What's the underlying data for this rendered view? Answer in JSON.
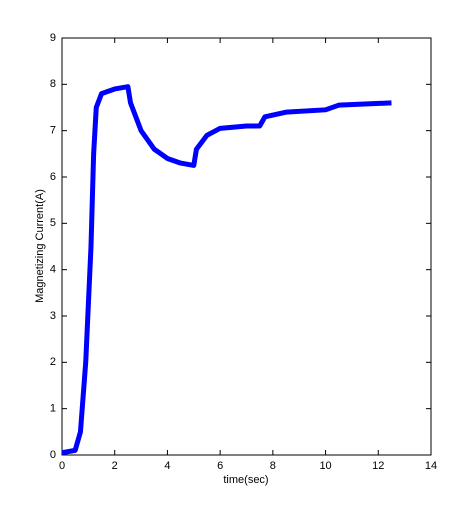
{
  "chart_data": {
    "type": "line",
    "x_label": "time(sec)",
    "y_label": "Magnetizing Current(A)",
    "series": [
      {
        "name": "Magnetizing Current",
        "color": "#0000ff",
        "x": [
          0,
          0.5,
          0.7,
          0.9,
          1.1,
          1.2,
          1.3,
          1.5,
          2.0,
          2.5,
          2.6,
          3.0,
          3.5,
          4.0,
          4.5,
          5.0,
          5.1,
          5.5,
          6.0,
          7.0,
          7.5,
          7.7,
          8.5,
          10.0,
          10.5,
          12.5
        ],
        "values": [
          0.05,
          0.1,
          0.5,
          2,
          4.5,
          6.5,
          7.5,
          7.8,
          7.9,
          7.95,
          7.6,
          7.0,
          6.6,
          6.4,
          6.3,
          6.25,
          6.6,
          6.9,
          7.05,
          7.1,
          7.1,
          7.3,
          7.4,
          7.45,
          7.55,
          7.6
        ]
      }
    ],
    "xlim": [
      0,
      14
    ],
    "xticks": [
      0,
      2,
      4,
      6,
      8,
      10,
      12,
      14
    ],
    "ylim": [
      0,
      9
    ],
    "yticks": [
      0,
      1,
      2,
      3,
      4,
      5,
      6,
      7,
      8,
      9
    ],
    "grid": false
  }
}
